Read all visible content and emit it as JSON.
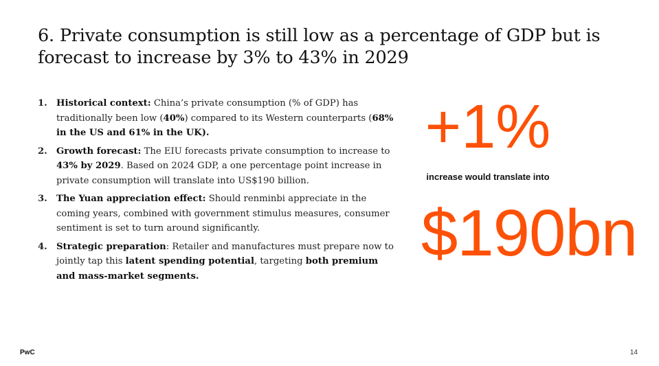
{
  "slide": {
    "title": "6. Private consumption is still low as a percentage of GDP but is forecast to increase by 3% to 43% in 2029",
    "points": [
      {
        "num": "1.",
        "segments": [
          {
            "text": "Historical context:",
            "bold": true
          },
          {
            "text": " China’s private consumption (% of GDP) has traditionally been low (",
            "bold": false
          },
          {
            "text": "40%",
            "bold": true
          },
          {
            "text": ") compared to its Western counterparts (",
            "bold": false
          },
          {
            "text": "68% in the US and 61% in the UK).",
            "bold": true
          }
        ]
      },
      {
        "num": "2.",
        "segments": [
          {
            "text": "Growth forecast:",
            "bold": true
          },
          {
            "text": " The EIU forecasts private consumption to increase to ",
            "bold": false
          },
          {
            "text": "43% by 2029",
            "bold": true
          },
          {
            "text": ". Based on 2024 GDP, a one percentage point increase in private consumption will translate into US$190 billion.",
            "bold": false
          }
        ]
      },
      {
        "num": "3.",
        "segments": [
          {
            "text": "The Yuan appreciation effect:",
            "bold": true
          },
          {
            "text": " Should renminbi appreciate in the coming years, combined with government stimulus measures, consumer sentiment is set to turn around significantly.",
            "bold": false
          }
        ]
      },
      {
        "num": "4.",
        "segments": [
          {
            "text": "Strategic preparation",
            "bold": true
          },
          {
            "text": ": Retailer and manufactures must prepare now to jointly tap this ",
            "bold": false
          },
          {
            "text": "latent spending potential",
            "bold": true
          },
          {
            "text": ", targeting ",
            "bold": false
          },
          {
            "text": "both premium and mass-market segments.",
            "bold": true
          }
        ]
      }
    ],
    "highlight": {
      "percent": "+1%",
      "caption": "increase would translate into",
      "amount": "$190bn",
      "accent_color": "#fd5108"
    },
    "footer": {
      "brand": "PwC",
      "page_number": "14"
    }
  }
}
